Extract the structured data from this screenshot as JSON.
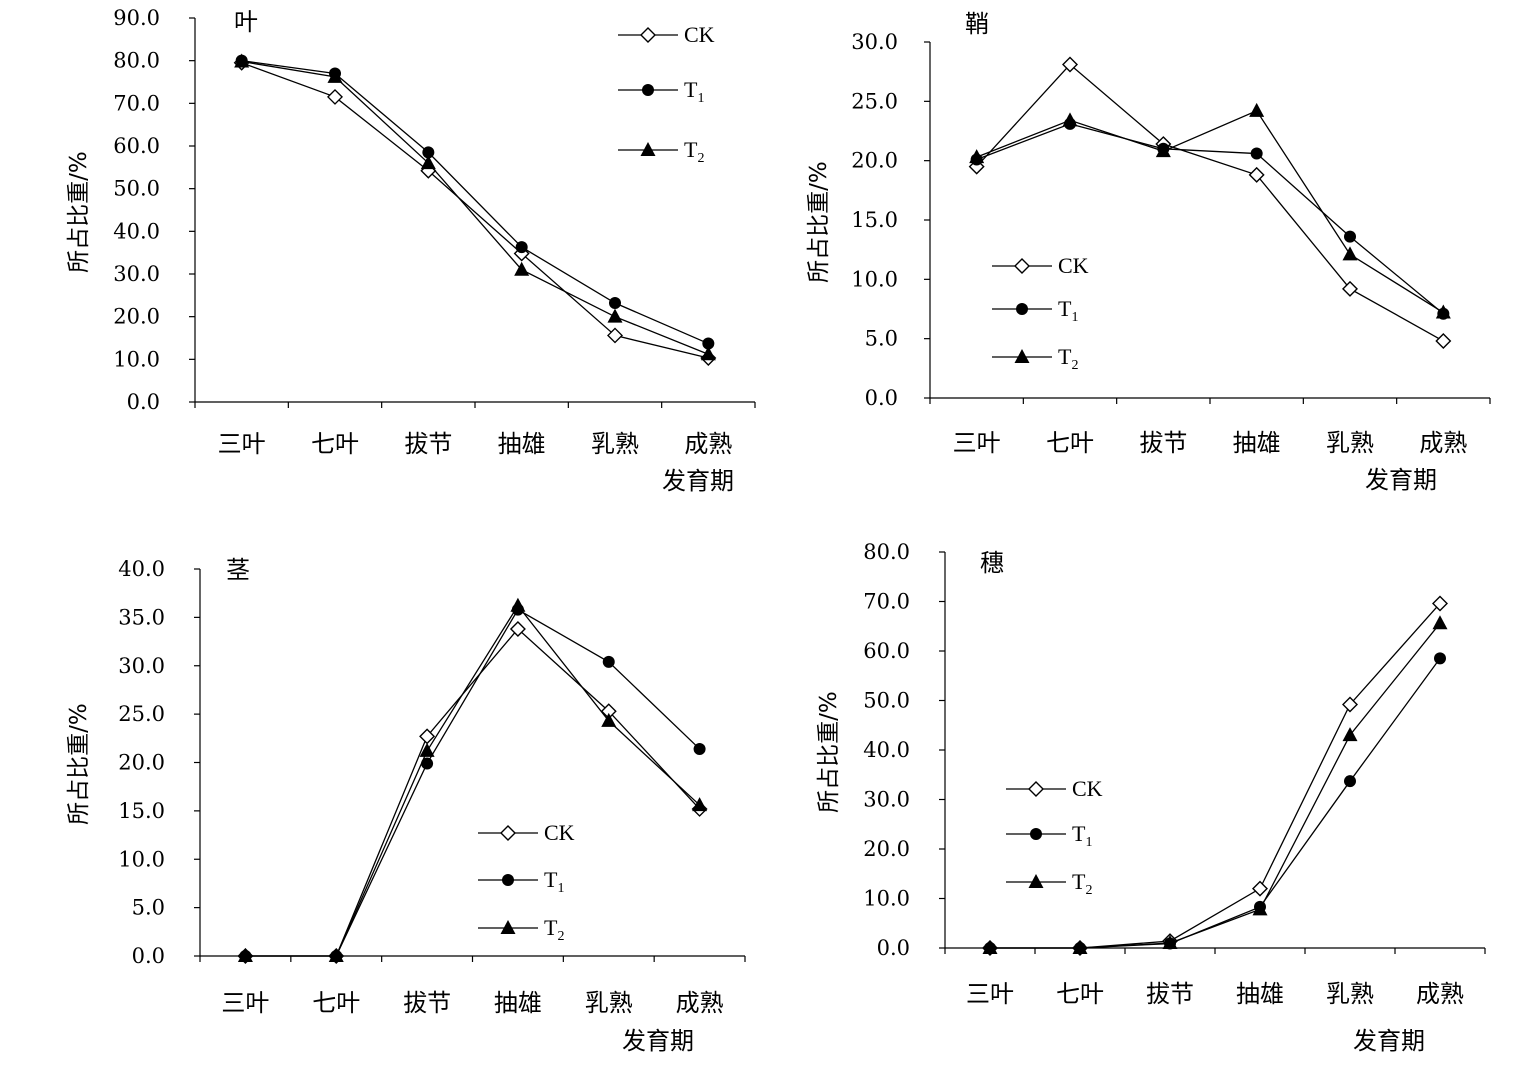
{
  "chart_data": [
    {
      "type": "line",
      "title": "叶",
      "xlabel": "发育期",
      "ylabel": "所占比重/%",
      "categories": [
        "三叶",
        "七叶",
        "拔节",
        "抽雄",
        "乳熟",
        "成熟"
      ],
      "ylim": [
        0,
        90
      ],
      "yticks": [
        "0.0",
        "10.0",
        "20.0",
        "30.0",
        "40.0",
        "50.0",
        "60.0",
        "70.0",
        "80.0",
        "90.0"
      ],
      "series": [
        {
          "name": "CK",
          "sub": "",
          "marker": "diamond",
          "values": [
            79.5,
            71.5,
            54.2,
            34.8,
            15.6,
            10.3
          ]
        },
        {
          "name": "T",
          "sub": "1",
          "marker": "circle",
          "values": [
            80.0,
            77.0,
            58.5,
            36.3,
            23.2,
            13.7
          ]
        },
        {
          "name": "T",
          "sub": "2",
          "marker": "triangle",
          "values": [
            79.8,
            76.2,
            56.0,
            31.0,
            20.0,
            11.2
          ]
        }
      ],
      "grid": false,
      "legend": "top-right"
    },
    {
      "type": "line",
      "title": "鞘",
      "xlabel": "发育期",
      "ylabel": "所占比重/%",
      "categories": [
        "三叶",
        "七叶",
        "拔节",
        "抽雄",
        "乳熟",
        "成熟"
      ],
      "ylim": [
        0,
        30
      ],
      "yticks": [
        "0.0",
        "5.0",
        "10.0",
        "15.0",
        "20.0",
        "25.0",
        "30.0"
      ],
      "series": [
        {
          "name": "CK",
          "sub": "",
          "marker": "diamond",
          "values": [
            19.5,
            28.1,
            21.4,
            18.8,
            9.2,
            4.8
          ]
        },
        {
          "name": "T",
          "sub": "1",
          "marker": "circle",
          "values": [
            20.1,
            23.1,
            21.0,
            20.6,
            13.6,
            7.1
          ]
        },
        {
          "name": "T",
          "sub": "2",
          "marker": "triangle",
          "values": [
            20.3,
            23.4,
            20.8,
            24.2,
            12.1,
            7.2
          ]
        }
      ],
      "grid": false,
      "legend": "bottom-left"
    },
    {
      "type": "line",
      "title": "茎",
      "xlabel": "发育期",
      "ylabel": "所占比重/%",
      "categories": [
        "三叶",
        "七叶",
        "拔节",
        "抽雄",
        "乳熟",
        "成熟"
      ],
      "ylim": [
        0,
        40
      ],
      "yticks": [
        "0.0",
        "5.0",
        "10.0",
        "15.0",
        "20.0",
        "25.0",
        "30.0",
        "35.0",
        "40.0"
      ],
      "series": [
        {
          "name": "CK",
          "sub": "",
          "marker": "diamond",
          "values": [
            0.0,
            0.0,
            22.7,
            33.8,
            25.3,
            15.2
          ]
        },
        {
          "name": "T",
          "sub": "1",
          "marker": "circle",
          "values": [
            0.0,
            0.0,
            19.9,
            35.8,
            30.4,
            21.4
          ]
        },
        {
          "name": "T",
          "sub": "2",
          "marker": "triangle",
          "values": [
            0.0,
            0.0,
            21.2,
            36.2,
            24.3,
            15.6
          ]
        }
      ],
      "grid": false,
      "legend": "bottom-right"
    },
    {
      "type": "line",
      "title": "穗",
      "xlabel": "发育期",
      "ylabel": "所占比重/%",
      "categories": [
        "三叶",
        "七叶",
        "拔节",
        "抽雄",
        "乳熟",
        "成熟"
      ],
      "ylim": [
        0,
        80
      ],
      "yticks": [
        "0.0",
        "10.0",
        "20.0",
        "30.0",
        "40.0",
        "50.0",
        "60.0",
        "70.0",
        "80.0"
      ],
      "series": [
        {
          "name": "CK",
          "sub": "",
          "marker": "diamond",
          "values": [
            0.0,
            0.0,
            1.4,
            12.0,
            49.2,
            69.6
          ]
        },
        {
          "name": "T",
          "sub": "1",
          "marker": "circle",
          "values": [
            0.0,
            0.0,
            0.9,
            8.3,
            33.7,
            58.5
          ]
        },
        {
          "name": "T",
          "sub": "2",
          "marker": "triangle",
          "values": [
            0.0,
            0.0,
            1.0,
            7.8,
            43.0,
            65.6
          ]
        }
      ],
      "grid": false,
      "legend": "middle-left"
    }
  ]
}
